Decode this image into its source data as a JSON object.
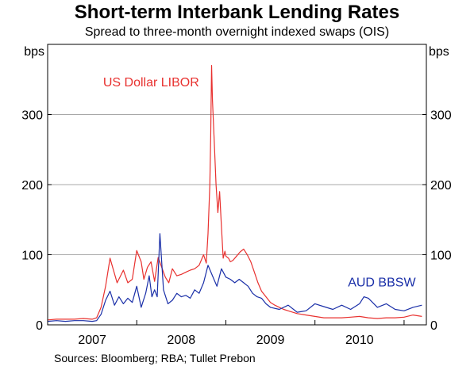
{
  "chart_data": {
    "type": "line",
    "title": "Short-term Interbank Lending Rates",
    "subtitle": "Spread to three-month overnight indexed swaps (OIS)",
    "ylabel_left": "bps",
    "ylabel_right": "bps",
    "ylim": [
      0,
      400
    ],
    "yticks": [
      0,
      100,
      200,
      300
    ],
    "xlim": [
      2006.5,
      2010.75
    ],
    "xticks": [
      {
        "label": "2007",
        "value": 2007.0
      },
      {
        "label": "2008",
        "value": 2008.0
      },
      {
        "label": "2009",
        "value": 2009.0
      },
      {
        "label": "2010",
        "value": 2010.0
      }
    ],
    "year_bounds": [
      2006.5,
      2007.5,
      2008.5,
      2009.5,
      2010.5
    ],
    "grid": true,
    "source": "Sources:  Bloomberg; RBA; Tullet Prebon",
    "series": [
      {
        "name": "US Dollar LIBOR",
        "color": "#e8312f",
        "x": [
          2006.5,
          2006.6,
          2006.7,
          2006.8,
          2006.9,
          2007.0,
          2007.05,
          2007.1,
          2007.15,
          2007.2,
          2007.28,
          2007.35,
          2007.4,
          2007.45,
          2007.5,
          2007.55,
          2007.58,
          2007.62,
          2007.66,
          2007.7,
          2007.74,
          2007.78,
          2007.82,
          2007.86,
          2007.9,
          2007.95,
          2008.0,
          2008.05,
          2008.1,
          2008.15,
          2008.2,
          2008.25,
          2008.28,
          2008.3,
          2008.32,
          2008.33,
          2008.34,
          2008.35,
          2008.37,
          2008.39,
          2008.41,
          2008.43,
          2008.45,
          2008.47,
          2008.49,
          2008.5,
          2008.53,
          2008.55,
          2008.58,
          2008.62,
          2008.66,
          2008.7,
          2008.74,
          2008.78,
          2008.82,
          2008.86,
          2008.9,
          2008.95,
          2009.0,
          2009.05,
          2009.1,
          2009.15,
          2009.2,
          2009.25,
          2009.3,
          2009.35,
          2009.4,
          2009.45,
          2009.5,
          2009.6,
          2009.7,
          2009.8,
          2009.9,
          2010.0,
          2010.1,
          2010.2,
          2010.3,
          2010.4,
          2010.5,
          2010.6,
          2010.7
        ],
        "values": [
          7,
          8,
          8,
          8,
          9,
          8,
          10,
          25,
          55,
          95,
          60,
          78,
          60,
          65,
          106,
          90,
          65,
          82,
          90,
          62,
          96,
          82,
          68,
          60,
          80,
          70,
          72,
          75,
          78,
          80,
          85,
          100,
          88,
          130,
          200,
          270,
          370,
          320,
          260,
          200,
          160,
          190,
          140,
          95,
          105,
          98,
          95,
          90,
          92,
          98,
          104,
          108,
          100,
          90,
          75,
          60,
          48,
          40,
          32,
          28,
          25,
          22,
          20,
          18,
          16,
          15,
          14,
          13,
          12,
          10,
          10,
          10,
          11,
          12,
          10,
          9,
          10,
          10,
          11,
          14,
          12
        ]
      },
      {
        "name": "AUD BBSW",
        "color": "#1a2fa8",
        "x": [
          2006.5,
          2006.6,
          2006.7,
          2006.8,
          2006.9,
          2007.0,
          2007.05,
          2007.1,
          2007.15,
          2007.2,
          2007.25,
          2007.3,
          2007.35,
          2007.4,
          2007.45,
          2007.5,
          2007.55,
          2007.6,
          2007.64,
          2007.67,
          2007.7,
          2007.73,
          2007.76,
          2007.8,
          2007.85,
          2007.9,
          2007.95,
          2008.0,
          2008.05,
          2008.1,
          2008.15,
          2008.2,
          2008.25,
          2008.3,
          2008.35,
          2008.4,
          2008.45,
          2008.5,
          2008.55,
          2008.6,
          2008.65,
          2008.7,
          2008.75,
          2008.8,
          2008.85,
          2008.9,
          2008.95,
          2009.0,
          2009.1,
          2009.2,
          2009.3,
          2009.4,
          2009.5,
          2009.6,
          2009.7,
          2009.8,
          2009.9,
          2010.0,
          2010.05,
          2010.1,
          2010.2,
          2010.3,
          2010.4,
          2010.5,
          2010.6,
          2010.7
        ],
        "values": [
          5,
          6,
          5,
          6,
          6,
          5,
          6,
          15,
          35,
          48,
          28,
          40,
          30,
          38,
          32,
          55,
          25,
          45,
          70,
          40,
          50,
          40,
          130,
          50,
          30,
          35,
          45,
          40,
          42,
          38,
          50,
          45,
          60,
          85,
          70,
          55,
          80,
          68,
          65,
          60,
          65,
          60,
          55,
          45,
          40,
          38,
          30,
          25,
          22,
          28,
          18,
          20,
          30,
          26,
          22,
          28,
          22,
          30,
          40,
          38,
          25,
          30,
          22,
          20,
          25,
          28
        ]
      }
    ],
    "annotations": [
      {
        "text": "US Dollar LIBOR",
        "series": 0
      },
      {
        "text": "AUD BBSW",
        "series": 1
      }
    ]
  }
}
